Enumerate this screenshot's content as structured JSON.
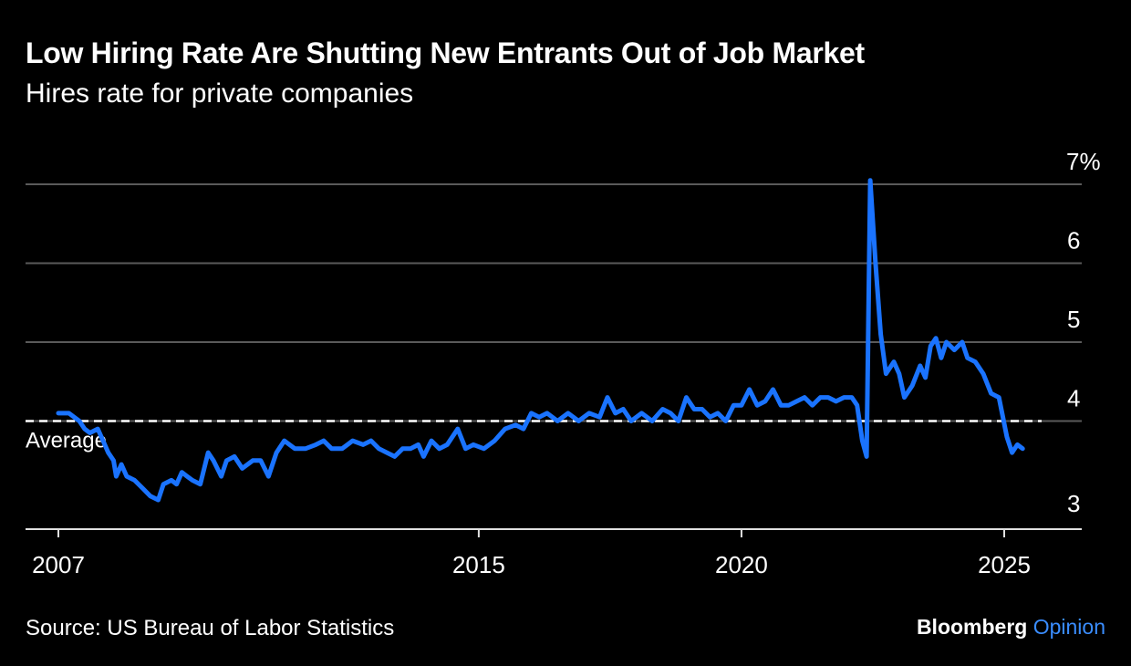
{
  "header": {
    "title": "Low Hiring Rate Are Shutting New Entrants Out of Job Market",
    "subtitle": "Hires rate for private companies"
  },
  "footer": {
    "source": "Source: US Bureau of Labor Statistics",
    "brand_name": "Bloomberg",
    "brand_section": "Opinion"
  },
  "colors": {
    "background": "#000000",
    "line": "#1a73ff",
    "grid": "#5a5a5a",
    "text": "#ffffff",
    "brand_accent": "#3a8dff"
  },
  "chart_data": {
    "type": "line",
    "title": "Low Hiring Rate Are Shutting New Entrants Out of Job Market",
    "subtitle": "Hires rate for private companies",
    "xlabel": "",
    "ylabel": "",
    "xlim": [
      2006.95,
      2025.25
    ],
    "ylim": [
      2.7,
      7.1
    ],
    "grid": true,
    "y_axis_side": "right",
    "y_ticks": [
      3,
      4,
      5,
      6,
      7
    ],
    "y_tick_labels": [
      "3",
      "4",
      "5",
      "6",
      "7%"
    ],
    "x_ticks": [
      2007,
      2015,
      2020,
      2025
    ],
    "x_tick_labels": [
      "2007",
      "2015",
      "2020",
      "2025"
    ],
    "reference_line": {
      "label": "Average",
      "value": 4.0,
      "style": "dashed"
    },
    "series": [
      {
        "points": [
          [
            2007.0,
            4.1
          ],
          [
            2007.2,
            4.1
          ],
          [
            2007.4,
            4.0
          ],
          [
            2007.5,
            3.9
          ],
          [
            2007.6,
            3.85
          ],
          [
            2007.75,
            3.9
          ],
          [
            2007.85,
            3.75
          ],
          [
            2007.95,
            3.6
          ],
          [
            2008.05,
            3.5
          ],
          [
            2008.1,
            3.3
          ],
          [
            2008.2,
            3.45
          ],
          [
            2008.3,
            3.3
          ],
          [
            2008.45,
            3.25
          ],
          [
            2008.6,
            3.15
          ],
          [
            2008.75,
            3.05
          ],
          [
            2008.9,
            3.0
          ],
          [
            2009.0,
            3.2
          ],
          [
            2009.15,
            3.25
          ],
          [
            2009.25,
            3.2
          ],
          [
            2009.35,
            3.35
          ],
          [
            2009.45,
            3.3
          ],
          [
            2009.55,
            3.25
          ],
          [
            2009.7,
            3.2
          ],
          [
            2009.85,
            3.6
          ],
          [
            2009.95,
            3.5
          ],
          [
            2010.1,
            3.3
          ],
          [
            2010.2,
            3.5
          ],
          [
            2010.35,
            3.55
          ],
          [
            2010.5,
            3.4
          ],
          [
            2010.7,
            3.5
          ],
          [
            2010.85,
            3.5
          ],
          [
            2011.0,
            3.3
          ],
          [
            2011.15,
            3.6
          ],
          [
            2011.3,
            3.75
          ],
          [
            2011.5,
            3.65
          ],
          [
            2011.7,
            3.65
          ],
          [
            2011.9,
            3.7
          ],
          [
            2012.05,
            3.75
          ],
          [
            2012.2,
            3.65
          ],
          [
            2012.4,
            3.65
          ],
          [
            2012.6,
            3.75
          ],
          [
            2012.8,
            3.7
          ],
          [
            2012.95,
            3.75
          ],
          [
            2013.1,
            3.65
          ],
          [
            2013.25,
            3.6
          ],
          [
            2013.4,
            3.55
          ],
          [
            2013.55,
            3.65
          ],
          [
            2013.7,
            3.65
          ],
          [
            2013.85,
            3.7
          ],
          [
            2013.95,
            3.55
          ],
          [
            2014.1,
            3.75
          ],
          [
            2014.25,
            3.65
          ],
          [
            2014.4,
            3.7
          ],
          [
            2014.6,
            3.9
          ],
          [
            2014.75,
            3.65
          ],
          [
            2014.9,
            3.7
          ],
          [
            2015.1,
            3.65
          ],
          [
            2015.3,
            3.75
          ],
          [
            2015.5,
            3.9
          ],
          [
            2015.7,
            3.95
          ],
          [
            2015.85,
            3.9
          ],
          [
            2016.0,
            4.1
          ],
          [
            2016.15,
            4.05
          ],
          [
            2016.3,
            4.1
          ],
          [
            2016.5,
            4.0
          ],
          [
            2016.7,
            4.1
          ],
          [
            2016.9,
            4.0
          ],
          [
            2017.1,
            4.1
          ],
          [
            2017.3,
            4.05
          ],
          [
            2017.45,
            4.3
          ],
          [
            2017.6,
            4.1
          ],
          [
            2017.75,
            4.15
          ],
          [
            2017.9,
            4.0
          ],
          [
            2018.1,
            4.1
          ],
          [
            2018.3,
            4.0
          ],
          [
            2018.5,
            4.15
          ],
          [
            2018.65,
            4.1
          ],
          [
            2018.8,
            4.0
          ],
          [
            2018.95,
            4.3
          ],
          [
            2019.1,
            4.15
          ],
          [
            2019.25,
            4.15
          ],
          [
            2019.4,
            4.05
          ],
          [
            2019.55,
            4.1
          ],
          [
            2019.7,
            4.0
          ],
          [
            2019.85,
            4.2
          ],
          [
            2020.0,
            4.2
          ],
          [
            2020.15,
            4.4
          ],
          [
            2020.3,
            4.2
          ],
          [
            2020.45,
            4.25
          ],
          [
            2020.6,
            4.4
          ],
          [
            2020.75,
            4.2
          ],
          [
            2020.9,
            4.2
          ],
          [
            2021.05,
            4.25
          ],
          [
            2021.2,
            4.3
          ],
          [
            2021.35,
            4.2
          ],
          [
            2021.5,
            4.3
          ],
          [
            2021.65,
            4.3
          ],
          [
            2021.8,
            4.25
          ],
          [
            2021.95,
            4.3
          ],
          [
            2022.1,
            4.3
          ],
          [
            2022.2,
            4.2
          ],
          [
            2022.3,
            3.75
          ],
          [
            2022.38,
            3.55
          ],
          [
            2022.45,
            7.05
          ],
          [
            2022.55,
            6.0
          ],
          [
            2022.65,
            5.1
          ],
          [
            2022.75,
            4.6
          ],
          [
            2022.9,
            4.75
          ],
          [
            2023.0,
            4.6
          ],
          [
            2023.1,
            4.3
          ],
          [
            2023.25,
            4.45
          ],
          [
            2023.4,
            4.7
          ],
          [
            2023.5,
            4.55
          ],
          [
            2023.6,
            4.95
          ],
          [
            2023.7,
            5.05
          ],
          [
            2023.8,
            4.8
          ],
          [
            2023.9,
            5.0
          ],
          [
            2024.05,
            4.9
          ],
          [
            2024.2,
            5.0
          ],
          [
            2024.3,
            4.8
          ],
          [
            2024.45,
            4.75
          ],
          [
            2024.6,
            4.6
          ],
          [
            2024.75,
            4.35
          ],
          [
            2024.9,
            4.3
          ],
          [
            2025.05,
            3.8
          ],
          [
            2025.15,
            3.6
          ],
          [
            2025.25,
            3.7
          ],
          [
            2025.35,
            3.65
          ]
        ]
      }
    ]
  }
}
